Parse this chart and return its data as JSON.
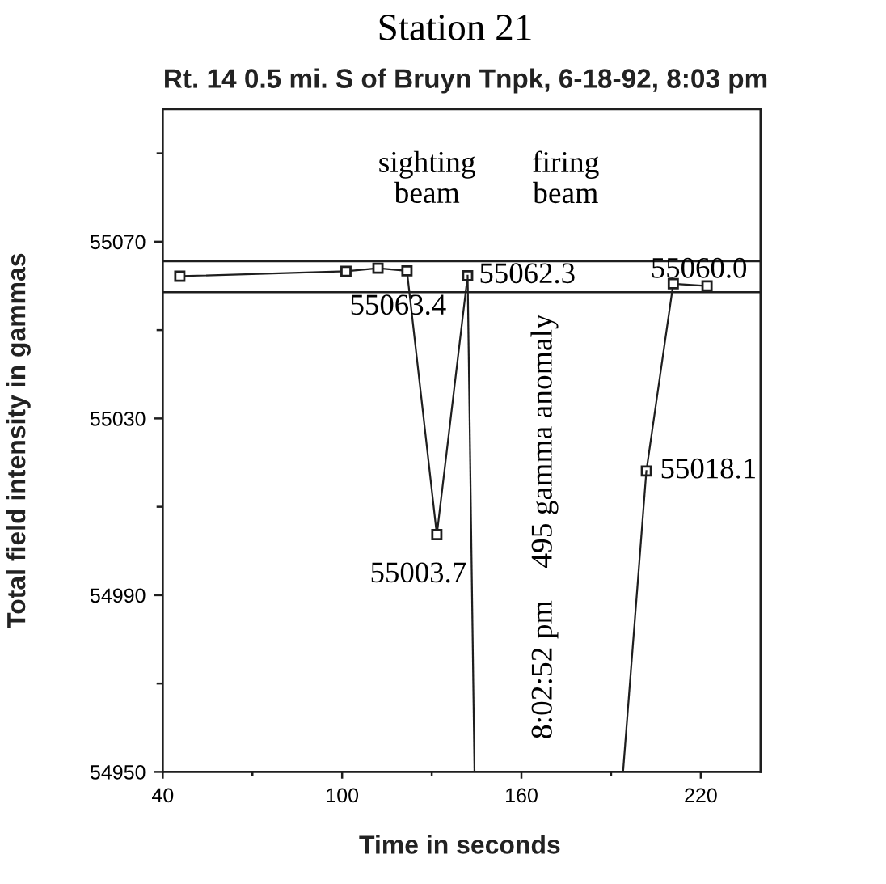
{
  "chart_data": {
    "type": "line",
    "title": "Station 21",
    "subtitle": "Rt. 14 0.5 mi. S of Bruyn Tnpk, 6-18-92, 8:03 pm",
    "xlabel": "Time in seconds",
    "ylabel": "Total field intensity in gammas",
    "xlim": [
      40,
      240
    ],
    "xticks": [
      40,
      {
        "value": 70,
        "label": null
      },
      100,
      {
        "value": 130,
        "label": null
      },
      160,
      {
        "value": 190,
        "label": null
      },
      220
    ],
    "ylim": [
      54950,
      55100
    ],
    "yticks": [
      54950,
      {
        "value": 54970,
        "label": null
      },
      54990,
      {
        "value": 55010,
        "label": null
      },
      55030,
      {
        "value": 55050,
        "label": null
      },
      55070,
      {
        "value": 55090,
        "label": null
      }
    ],
    "marker": "square",
    "line_style": "solid",
    "series": [
      {
        "color": "#1e1e1e",
        "x": [
          45.7,
          101.3,
          112.0,
          121.7,
          131.7,
          142.0
        ],
        "values": [
          55062.2,
          55063.3,
          55064.0,
          55063.4,
          55003.7,
          55062.3
        ],
        "value_labels": [
          null,
          null,
          null,
          "55063.4",
          "55003.7",
          "55062.3"
        ]
      },
      {
        "color": "#1e1e1e",
        "x": [
          201.8,
          210.8,
          222.1
        ],
        "values": [
          55018.1,
          55060.5,
          55060.0
        ],
        "value_labels": [
          "55018.1",
          null,
          "55060.0"
        ]
      },
      {
        "color": "#1e1e1e",
        "marker": "none",
        "x": [
          142.0,
          144.3
        ],
        "values": [
          55062.3,
          54950
        ]
      },
      {
        "color": "#1e1e1e",
        "marker": "none",
        "x": [
          194.0,
          201.8
        ],
        "values": [
          54950,
          55018.1
        ]
      }
    ],
    "ref_lines": [
      {
        "axis": "y",
        "value": 55065.6,
        "color": "#1e1e1e",
        "line_style": "solid"
      },
      {
        "axis": "y",
        "value": 55058.6,
        "color": "#1e1e1e",
        "line_style": "solid"
      }
    ],
    "annotations": [
      "sighting\nbeam",
      "firing\nbeam",
      "495 gamma anomaly",
      "8:02:52 pm"
    ]
  }
}
